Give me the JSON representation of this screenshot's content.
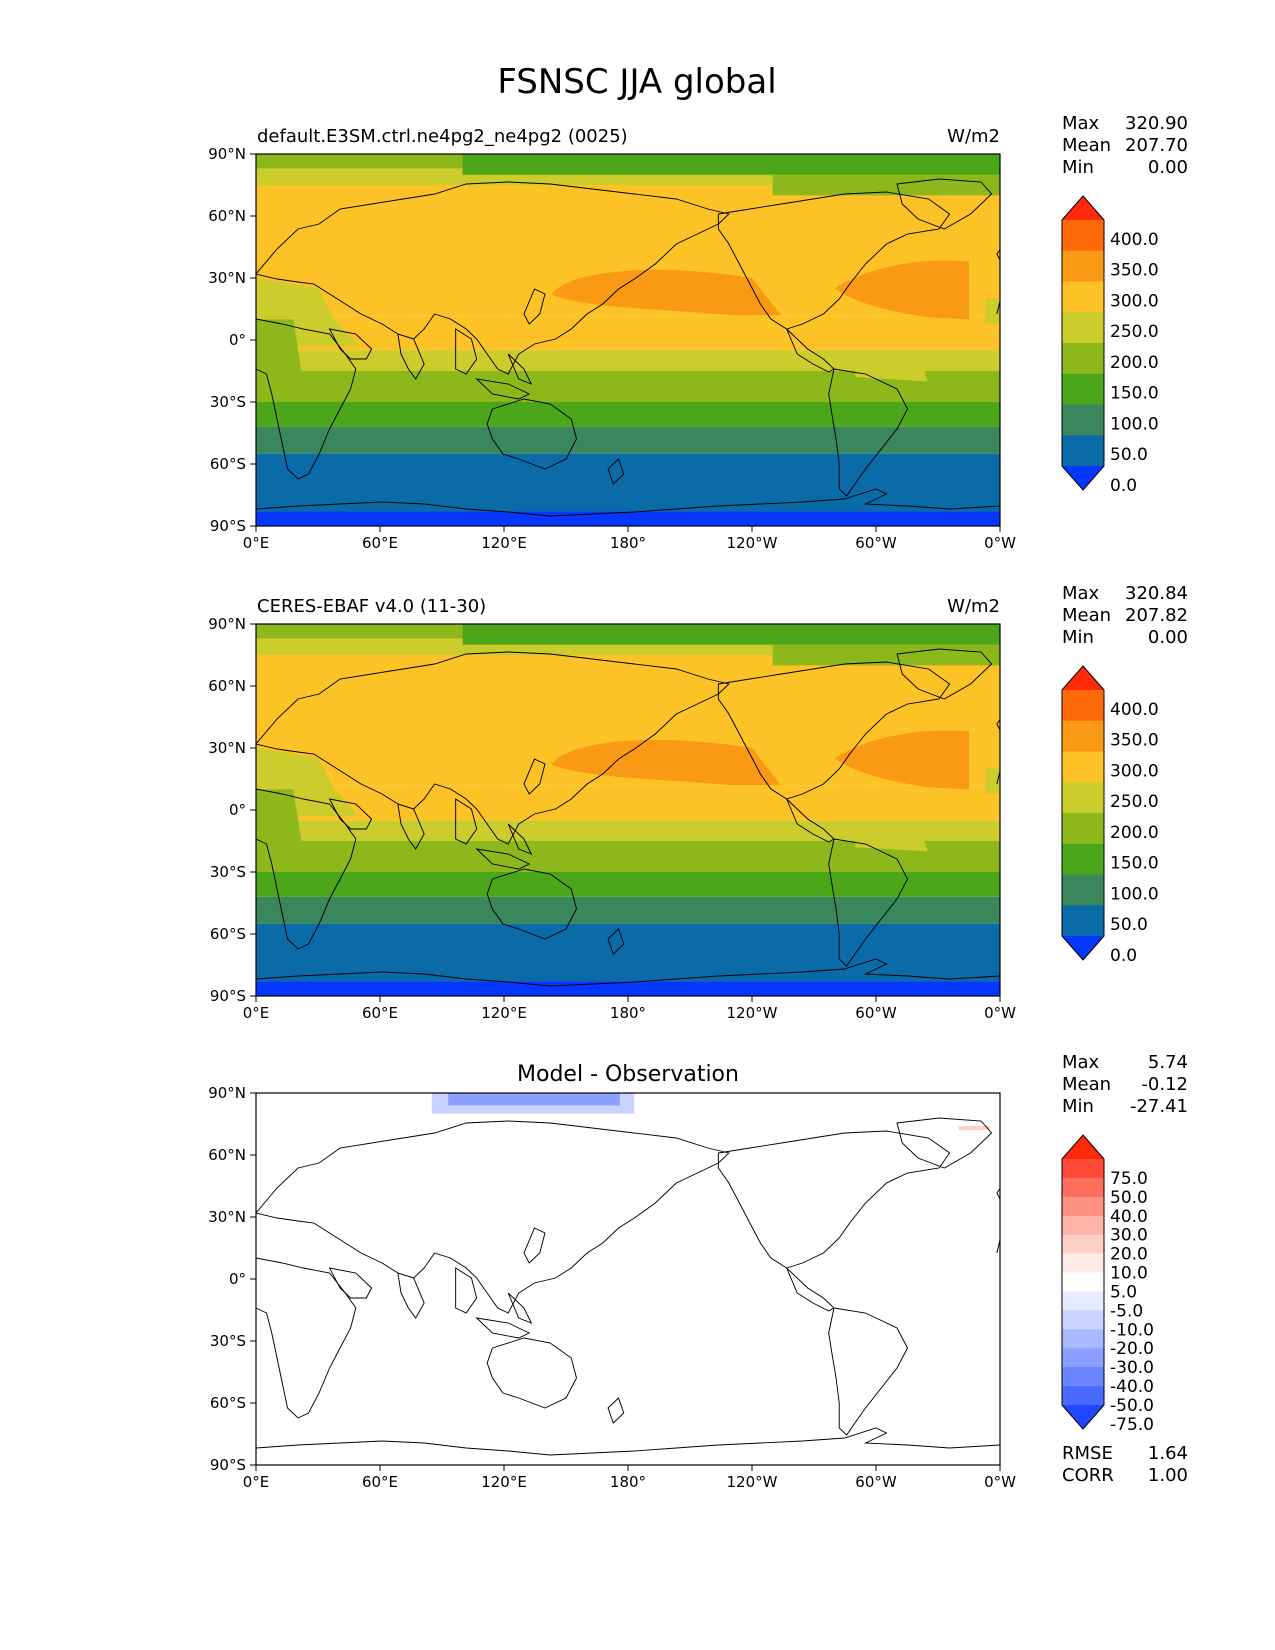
{
  "title": "FSNSC JJA global",
  "panels": [
    {
      "id": "test",
      "left_title": "default.E3SM.ctrl.ne4pg2_ne4pg2 (0025)",
      "center_title": "",
      "right_title": "W/m2",
      "stats": [
        {
          "label": "Max",
          "value": "320.90"
        },
        {
          "label": "Mean",
          "value": "207.70"
        },
        {
          "label": "Min",
          "value": "0.00"
        }
      ],
      "colorbar": {
        "levels": [
          "400.0",
          "350.0",
          "300.0",
          "250.0",
          "200.0",
          "150.0",
          "100.0",
          "50.0",
          "0.0"
        ],
        "colors": [
          "#ff2a0a",
          "#ff6a08",
          "#fa9a14",
          "#fcc226",
          "#cccd2c",
          "#8db81c",
          "#4ca61a",
          "#3a875c",
          "#0b6aa8",
          "#0637ff"
        ]
      },
      "map": {
        "bands": [
          {
            "lat_top": 90,
            "lat_bottom": 83,
            "color": "#8db81c"
          },
          {
            "lat_top": 83,
            "lat_bottom": 75,
            "color": "#cccd2c"
          },
          {
            "lat_top": 75,
            "lat_bottom": 12,
            "color": "#fcc226"
          },
          {
            "lat_top": 12,
            "lat_bottom": -5,
            "color": "#fcc226"
          },
          {
            "lat_top": -5,
            "lat_bottom": -15,
            "color": "#cccd2c"
          },
          {
            "lat_top": -15,
            "lat_bottom": -30,
            "color": "#8db81c"
          },
          {
            "lat_top": -30,
            "lat_bottom": -42,
            "color": "#4ca61a"
          },
          {
            "lat_top": -42,
            "lat_bottom": -55,
            "color": "#3a875c"
          },
          {
            "lat_top": -55,
            "lat_bottom": -83,
            "color": "#0b6aa8"
          },
          {
            "lat_top": -83,
            "lat_bottom": -90,
            "color": "#0637ff"
          }
        ]
      }
    },
    {
      "id": "reference",
      "left_title": "CERES-EBAF v4.0 (11-30)",
      "center_title": "",
      "right_title": "W/m2",
      "stats": [
        {
          "label": "Max",
          "value": "320.84"
        },
        {
          "label": "Mean",
          "value": "207.82"
        },
        {
          "label": "Min",
          "value": "0.00"
        }
      ],
      "colorbar": {
        "levels": [
          "400.0",
          "350.0",
          "300.0",
          "250.0",
          "200.0",
          "150.0",
          "100.0",
          "50.0",
          "0.0"
        ],
        "colors": [
          "#ff2a0a",
          "#ff6a08",
          "#fa9a14",
          "#fcc226",
          "#cccd2c",
          "#8db81c",
          "#4ca61a",
          "#3a875c",
          "#0b6aa8",
          "#0637ff"
        ]
      },
      "map": {
        "bands": [
          {
            "lat_top": 90,
            "lat_bottom": 83,
            "color": "#8db81c"
          },
          {
            "lat_top": 83,
            "lat_bottom": 75,
            "color": "#cccd2c"
          },
          {
            "lat_top": 75,
            "lat_bottom": 12,
            "color": "#fcc226"
          },
          {
            "lat_top": 12,
            "lat_bottom": -5,
            "color": "#fcc226"
          },
          {
            "lat_top": -5,
            "lat_bottom": -15,
            "color": "#cccd2c"
          },
          {
            "lat_top": -15,
            "lat_bottom": -30,
            "color": "#8db81c"
          },
          {
            "lat_top": -30,
            "lat_bottom": -42,
            "color": "#4ca61a"
          },
          {
            "lat_top": -42,
            "lat_bottom": -55,
            "color": "#3a875c"
          },
          {
            "lat_top": -55,
            "lat_bottom": -83,
            "color": "#0b6aa8"
          },
          {
            "lat_top": -83,
            "lat_bottom": -90,
            "color": "#0637ff"
          }
        ]
      }
    },
    {
      "id": "diff",
      "left_title": "",
      "center_title": "Model - Observation",
      "right_title": "",
      "stats": [
        {
          "label": "Max",
          "value": "5.74"
        },
        {
          "label": "Mean",
          "value": "-0.12"
        },
        {
          "label": "Min",
          "value": "-27.41"
        }
      ],
      "extra_stats": [
        {
          "label": "RMSE",
          "value": "1.64"
        },
        {
          "label": "CORR",
          "value": "1.00"
        }
      ],
      "colorbar": {
        "levels": [
          "75.0",
          "50.0",
          "40.0",
          "30.0",
          "20.0",
          "10.0",
          "5.0",
          "-5.0",
          "-10.0",
          "-20.0",
          "-30.0",
          "-40.0",
          "-50.0",
          "-75.0"
        ],
        "colors": [
          "#ff2a0a",
          "#ff4a38",
          "#ff6d5c",
          "#ff9182",
          "#ffb2a6",
          "#ffd0c6",
          "#ffece8",
          "#ffffff",
          "#e6ebff",
          "#c9d3ff",
          "#a9b9ff",
          "#8b9fff",
          "#6b84ff",
          "#4a6aff",
          "#2047ff"
        ]
      },
      "map": {
        "bands": [
          {
            "lat_top": 90,
            "lat_bottom": -90,
            "color": "#ffffff"
          }
        ]
      }
    }
  ],
  "axes": {
    "lat_ticks": [
      "90°N",
      "60°N",
      "30°N",
      "0°",
      "30°S",
      "60°S",
      "90°S"
    ],
    "lon_ticks": [
      "0°E",
      "60°E",
      "120°E",
      "180°",
      "120°W",
      "60°W",
      "0°W"
    ]
  }
}
